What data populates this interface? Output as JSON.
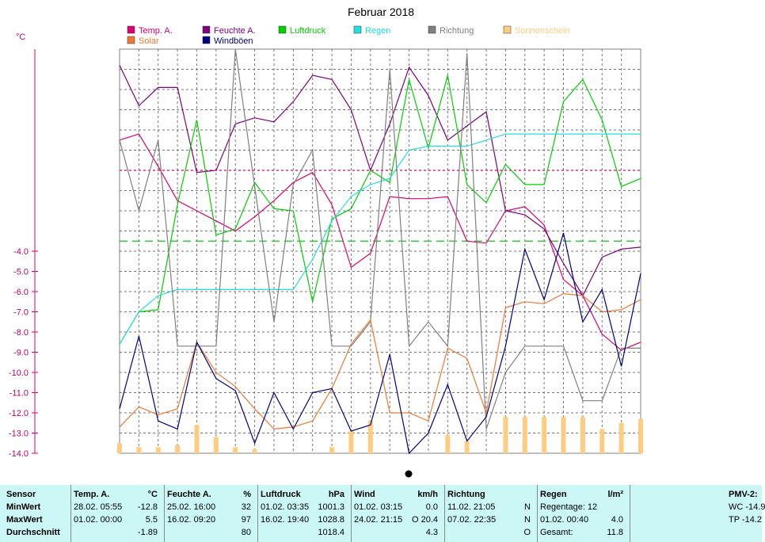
{
  "chart_data": {
    "type": "line",
    "title": "Februar 2018",
    "ylabel": "°C",
    "ylim": [
      -14,
      6
    ],
    "yticks": [
      "-4.0",
      "-5.0",
      "-6.0",
      "-7.0",
      "-8.0",
      "-9.0",
      "-10.0",
      "-11.0",
      "-12.0",
      "-13.0",
      "-14.0"
    ],
    "days": 28,
    "grid": true,
    "legend_position": "top",
    "legend": [
      {
        "label": "Temp. A.",
        "color": "#e0006f"
      },
      {
        "label": "Feuchte A.",
        "color": "#800080"
      },
      {
        "label": "Luftdruck",
        "color": "#00d000"
      },
      {
        "label": "Regen",
        "color": "#22e0e0"
      },
      {
        "label": "Richtung",
        "color": "#808080"
      },
      {
        "label": "Sonnenschein",
        "color": "#ffcc80"
      },
      {
        "label": "Solar",
        "color": "#f07830"
      },
      {
        "label": "Windböen",
        "color": "#000080"
      }
    ],
    "series": [
      {
        "name": "Temp. A.",
        "color": "#e0006f",
        "y": [
          1.5,
          1.8,
          0.2,
          -1.5,
          -2.0,
          -2.5,
          -3.0,
          -2.3,
          -1.5,
          -0.6,
          -0.1,
          -1.7,
          -4.8,
          -4.1,
          -1.3,
          -1.4,
          -1.4,
          -1.3,
          -3.5,
          -3.6,
          -2.0,
          -1.8,
          -2.7,
          -5.4,
          -6.2,
          -8.1,
          -8.9,
          -8.5
        ]
      },
      {
        "name": "Feuchte A.",
        "color": "#800080",
        "y": [
          5.2,
          3.2,
          4.1,
          4.1,
          -0.1,
          0.0,
          2.3,
          2.6,
          2.4,
          3.4,
          4.7,
          4.5,
          3.0,
          0.0,
          2.3,
          5.1,
          3.7,
          1.5,
          2.2,
          2.9,
          -2.0,
          -2.2,
          -2.9,
          -4.6,
          -6.2,
          -4.3,
          -3.9,
          -3.8
        ]
      },
      {
        "name": "Luftdruck",
        "color": "#00d000",
        "y": [
          -8.6,
          -7.0,
          -6.9,
          -1.7,
          2.5,
          -3.2,
          -2.9,
          -0.6,
          -1.9,
          -2.0,
          -6.5,
          -2.4,
          -1.9,
          0.0,
          -0.6,
          4.5,
          1.1,
          4.7,
          -0.7,
          -1.6,
          0.3,
          -0.7,
          -0.7,
          3.4,
          4.5,
          2.5,
          -0.8,
          -0.4
        ]
      },
      {
        "name": "Regen",
        "color": "#22e0e0",
        "y": [
          -8.6,
          -7.0,
          -6.2,
          -5.9,
          -5.9,
          -5.9,
          -5.9,
          -5.9,
          -5.9,
          -5.9,
          -4.4,
          -2.5,
          -1.3,
          -0.7,
          -0.4,
          1.0,
          1.2,
          1.2,
          1.2,
          1.5,
          1.8,
          1.8,
          1.8,
          1.8,
          1.8,
          1.8,
          1.8,
          1.8
        ]
      },
      {
        "name": "Richtung",
        "color": "#808080",
        "y": [
          1.5,
          -2.0,
          1.5,
          -8.7,
          -8.7,
          -8.7,
          6.0,
          -0.8,
          -7.5,
          -0.7,
          1.0,
          -8.7,
          -8.7,
          -7.5,
          5.0,
          -8.7,
          -7.5,
          -8.7,
          5.8,
          -12.8,
          -10.0,
          -8.7,
          -8.7,
          -8.7,
          -11.4,
          -11.4,
          -8.8,
          -8.8
        ]
      },
      {
        "name": "Solar",
        "color": "#f07830",
        "y": [
          -12.7,
          -11.7,
          -12.1,
          -11.8,
          -8.5,
          -10.0,
          -10.7,
          -11.8,
          -12.8,
          -12.7,
          -12.4,
          -10.8,
          -8.6,
          -7.4,
          -12.0,
          -12.0,
          -12.4,
          -8.8,
          -9.3,
          -12.0,
          -6.8,
          -6.5,
          -6.6,
          -6.1,
          -6.2,
          -7.0,
          -6.9,
          -6.4
        ]
      },
      {
        "name": "Windböen",
        "color": "#000080",
        "y": [
          -11.8,
          -8.2,
          -12.4,
          -12.8,
          -8.5,
          -10.3,
          -10.9,
          -13.5,
          -11.0,
          -12.8,
          -11.0,
          -10.8,
          -12.9,
          -12.6,
          -9.1,
          -14.0,
          -13.0,
          -10.6,
          -13.4,
          -12.2,
          -8.7,
          -3.9,
          -6.4,
          -3.1,
          -7.5,
          -5.9,
          -9.7,
          -5.1
        ]
      }
    ],
    "sun_bars": [
      0.5,
      0.3,
      0.3,
      0.4,
      1.4,
      0.8,
      0.3,
      0.2,
      0,
      0,
      0,
      0.3,
      1.1,
      1.6,
      0,
      0,
      0,
      0.9,
      0.6,
      0,
      1.8,
      1.8,
      1.8,
      1.8,
      1.8,
      1.2,
      1.5,
      1.7
    ],
    "ref_lines": [
      {
        "y": -3.5,
        "color": "#00d000",
        "style": "dashed"
      },
      {
        "y": 0.0,
        "color": "#e0006f",
        "style": "dotted"
      }
    ]
  },
  "table": {
    "columns": [
      {
        "head": "Sensor",
        "unit": "",
        "rows": [
          "MinWert",
          "MaxWert",
          "Durchschnitt"
        ]
      },
      {
        "head": "Temp. A.",
        "unit": "°C",
        "rows": [
          [
            "28.02.  05:55",
            "-12.8"
          ],
          [
            "01.02.  00:00",
            "5.5"
          ],
          [
            "",
            "-1.89"
          ]
        ]
      },
      {
        "head": "Feuchte A.",
        "unit": "%",
        "rows": [
          [
            "25.02.  16:00",
            "32"
          ],
          [
            "16.02.  09:20",
            "97"
          ],
          [
            "",
            "80"
          ]
        ]
      },
      {
        "head": "Luftdruck",
        "unit": "hPa",
        "rows": [
          [
            "01.02.  03:35",
            "1001.3"
          ],
          [
            "16.02.  19:40",
            "1028.8"
          ],
          [
            "",
            "1018.4"
          ]
        ]
      },
      {
        "head": "Wind",
        "unit": "km/h",
        "rows": [
          [
            "01.02.  03:15",
            "0.0"
          ],
          [
            "24.02.  21:15",
            "O  20.4"
          ],
          [
            "",
            "4.3"
          ]
        ]
      },
      {
        "head": "Richtung",
        "unit": "",
        "rows": [
          [
            "11.02.  21:05",
            "N"
          ],
          [
            "07.02.  22:35",
            "N"
          ],
          [
            "",
            "O"
          ]
        ]
      },
      {
        "head": "Regen",
        "unit": "l/m²",
        "rows": [
          [
            "Regentage: 12",
            ""
          ],
          [
            "01.02.  00:40",
            "4.0"
          ],
          [
            "Gesamt:",
            "11.8"
          ]
        ]
      },
      {
        "head": "PMV-2:",
        "unit": "",
        "rows": [
          "WC -14.9",
          "TP -14.2",
          ""
        ]
      }
    ]
  }
}
